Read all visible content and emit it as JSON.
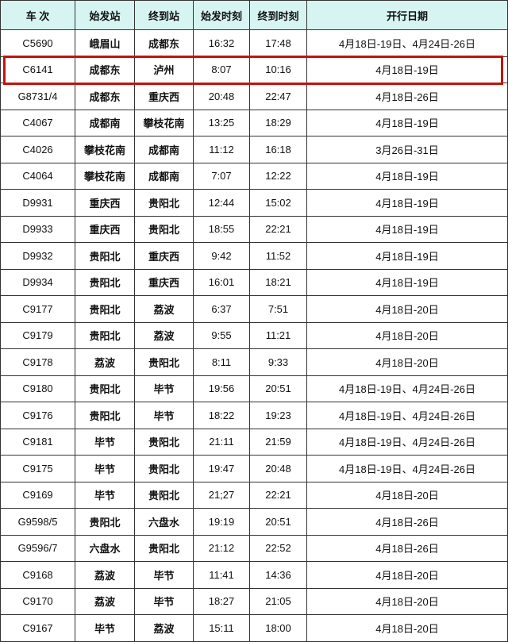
{
  "headers": [
    "车 次",
    "始发站",
    "终到站",
    "始发时刻",
    "终到时刻",
    "开行日期"
  ],
  "highlight_color": "#c0140f",
  "header_bg": "#d6f4f2",
  "rows": [
    [
      "C5690",
      "峨眉山",
      "成都东",
      "16:32",
      "17:48",
      "4月18日-19日、4月24日-26日"
    ],
    [
      "C6141",
      "成都东",
      "泸州",
      "8:07",
      "10:16",
      "4月18日-19日"
    ],
    [
      "G8731/4",
      "成都东",
      "重庆西",
      "20:48",
      "22:47",
      "4月18日-26日"
    ],
    [
      "C4067",
      "成都南",
      "攀枝花南",
      "13:25",
      "18:29",
      "4月18日-19日"
    ],
    [
      "C4026",
      "攀枝花南",
      "成都南",
      "11:12",
      "16:18",
      "3月26日-31日"
    ],
    [
      "C4064",
      "攀枝花南",
      "成都南",
      "7:07",
      "12:22",
      "4月18日-19日"
    ],
    [
      "D9931",
      "重庆西",
      "贵阳北",
      "12:44",
      "15:02",
      "4月18日-19日"
    ],
    [
      "D9933",
      "重庆西",
      "贵阳北",
      "18:55",
      "22:21",
      "4月18日-19日"
    ],
    [
      "D9932",
      "贵阳北",
      "重庆西",
      "9:42",
      "11:52",
      "4月18日-19日"
    ],
    [
      "D9934",
      "贵阳北",
      "重庆西",
      "16:01",
      "18:21",
      "4月18日-19日"
    ],
    [
      "C9177",
      "贵阳北",
      "荔波",
      "6:37",
      "7:51",
      "4月18日-20日"
    ],
    [
      "C9179",
      "贵阳北",
      "荔波",
      "9:55",
      "11:21",
      "4月18日-20日"
    ],
    [
      "C9178",
      "荔波",
      "贵阳北",
      "8:11",
      "9:33",
      "4月18日-20日"
    ],
    [
      "C9180",
      "贵阳北",
      "毕节",
      "19:56",
      "20:51",
      "4月18日-19日、4月24日-26日"
    ],
    [
      "C9176",
      "贵阳北",
      "毕节",
      "18:22",
      "19:23",
      "4月18日-19日、4月24日-26日"
    ],
    [
      "C9181",
      "毕节",
      "贵阳北",
      "21:11",
      "21:59",
      "4月18日-19日、4月24日-26日"
    ],
    [
      "C9175",
      "毕节",
      "贵阳北",
      "19:47",
      "20:48",
      "4月18日-19日、4月24日-26日"
    ],
    [
      "C9169",
      "毕节",
      "贵阳北",
      "21;27",
      "22:21",
      "4月18日-20日"
    ],
    [
      "G9598/5",
      "贵阳北",
      "六盘水",
      "19:19",
      "20:51",
      "4月18日-26日"
    ],
    [
      "G9596/7",
      "六盘水",
      "贵阳北",
      "21:12",
      "22:52",
      "4月18日-26日"
    ],
    [
      "C9168",
      "荔波",
      "毕节",
      "11:41",
      "14:36",
      "4月18日-20日"
    ],
    [
      "C9170",
      "荔波",
      "毕节",
      "18:27",
      "21:05",
      "4月18日-20日"
    ],
    [
      "C9167",
      "毕节",
      "荔波",
      "15:11",
      "18:00",
      "4月18日-20日"
    ]
  ]
}
